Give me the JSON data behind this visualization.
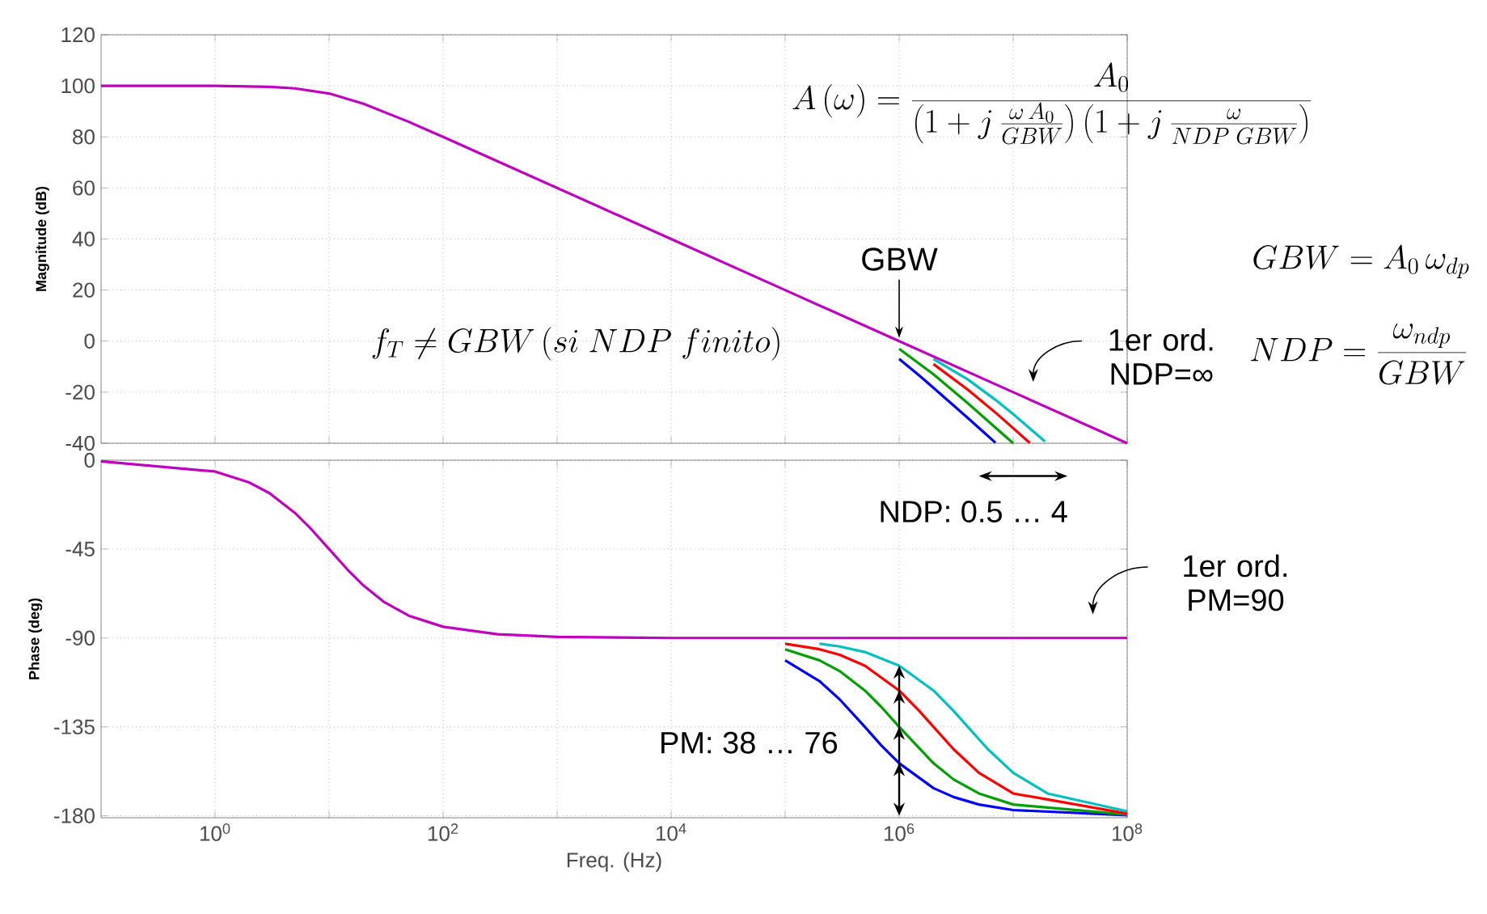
{
  "chart_data": [
    {
      "type": "line",
      "ylabel": "Magnitude (dB)",
      "log": "x",
      "grid": true,
      "tick_labels": "y",
      "xlim": [
        0.1,
        100000000.0
      ],
      "ylim": [
        -40,
        120
      ],
      "xticks": [
        {
          "value": 1,
          "label": null
        },
        {
          "value": 10,
          "label": null
        },
        {
          "value": 100,
          "label": null
        },
        {
          "value": 1000,
          "label": null
        },
        {
          "value": 10000,
          "label": null
        },
        {
          "value": 100000,
          "label": null
        },
        {
          "value": 1000000,
          "label": null
        },
        {
          "value": 10000000,
          "label": null
        },
        {
          "value": 100000000,
          "label": null
        }
      ],
      "yticks": [
        -40,
        -20,
        0,
        20,
        40,
        60,
        80,
        100,
        120
      ],
      "series": [
        {
          "color": "#0000ff",
          "x": [
            1000000,
            1500000,
            2000000,
            3000000,
            4000000,
            5000000,
            7000000
          ],
          "values": [
            -7,
            -13.5,
            -18.3,
            -25.2,
            -30.1,
            -34,
            -39.8
          ]
        },
        {
          "color": "#00a000",
          "x": [
            1000000,
            2000000,
            4000000,
            7000000,
            10000000
          ],
          "values": [
            -3,
            -13,
            -24.3,
            -33.9,
            -40
          ]
        },
        {
          "color": "#ff0000",
          "x": [
            2000000,
            4000000,
            7000000,
            10000000,
            14000000
          ],
          "values": [
            -9,
            -19,
            -28,
            -34.1,
            -39.9
          ]
        },
        {
          "color": "#00c0c0",
          "x": [
            2000000,
            4000000,
            7000000,
            10000000,
            19000000
          ],
          "values": [
            -7,
            -15,
            -23,
            -28.6,
            -39.3
          ]
        },
        {
          "color": "#c000c0",
          "x": [
            0.1,
            1,
            3,
            5,
            10,
            20,
            50,
            100,
            1000,
            10000,
            100000,
            1000000,
            10000000,
            100000000
          ],
          "values": [
            100,
            100,
            99.6,
            99,
            97,
            93,
            85.9,
            80,
            60,
            40,
            20,
            0,
            -20,
            -40
          ]
        }
      ],
      "annotations": [
        "A\\left(\\omega\\right)=\\frac{A_0}{\\left(1+j\\,\\frac{\\omega\\,A_0}{GBW}\\right)\\left(1+j\\,\\frac{\\omega}{NDP\\;GBW}\\right)}",
        {
          "text": "GBW",
          "x": 1000000,
          "y": 0
        },
        "1er ord. NDP=∞",
        "f_T\\neq GBW\\left(si\\ NDP\\ finito\\right)",
        "GBW=A_0\\,\\omega_{dp}",
        "NDP=\\frac{\\omega_{ndp}}{GBW}"
      ]
    },
    {
      "type": "line",
      "xlabel": "Freq. (Hz)",
      "ylabel": "Phase (deg)",
      "log": "x",
      "grid": true,
      "xlim": [
        0.1,
        100000000.0
      ],
      "ylim": [
        -181,
        0
      ],
      "xticks": [
        {
          "value": 1,
          "label": "10$^{0}$"
        },
        {
          "value": 10,
          "label": null
        },
        {
          "value": 100,
          "label": "10$^{2}$"
        },
        {
          "value": 1000,
          "label": null
        },
        {
          "value": 10000,
          "label": "10$^{4}$"
        },
        {
          "value": 100000,
          "label": null
        },
        {
          "value": 1000000,
          "label": "10$^{6}$"
        },
        {
          "value": 10000000,
          "label": null
        },
        {
          "value": 100000000,
          "label": "10$^{8}$"
        }
      ],
      "yticks": [
        -180,
        -135,
        -90,
        -45,
        0
      ],
      "series": [
        {
          "color": "#0000ff",
          "x": [
            100000,
            200000,
            300000,
            500000,
            700000,
            1000000,
            2000000,
            3000000,
            5000000,
            10000000,
            100000000
          ],
          "values": [
            -101.3,
            -111.8,
            -121,
            -135,
            -144.5,
            -153.4,
            -166,
            -170.5,
            -174.3,
            -177.1,
            -179.7
          ]
        },
        {
          "color": "#00a000",
          "x": [
            100000,
            200000,
            300000,
            500000,
            700000,
            1000000,
            2000000,
            3000000,
            5000000,
            10000000,
            100000000
          ],
          "values": [
            -95.7,
            -101.3,
            -106.7,
            -116.6,
            -125,
            -135,
            -153.4,
            -161.6,
            -168.7,
            -174.3,
            -179.4
          ]
        },
        {
          "color": "#ff0000",
          "x": [
            100000,
            200000,
            300000,
            500000,
            1000000,
            1500000,
            2000000,
            3000000,
            5000000,
            10000000,
            100000000
          ],
          "values": [
            -92.9,
            -95.7,
            -98.5,
            -104,
            -116.6,
            -126.9,
            -135,
            -146.3,
            -158.2,
            -168.7,
            -178.9
          ]
        },
        {
          "color": "#00c0c0",
          "x": [
            200000,
            300000,
            500000,
            1000000,
            2000000,
            3000000,
            4000000,
            6000000,
            10000000,
            20000000,
            100000000
          ],
          "values": [
            -92.9,
            -94.3,
            -97.1,
            -104,
            -116.6,
            -126.9,
            -135,
            -146.3,
            -158.2,
            -168.7,
            -177.7
          ]
        },
        {
          "color": "#c000c0",
          "x": [
            0.1,
            1,
            2,
            3,
            5,
            7,
            10,
            15,
            20,
            30,
            50,
            100,
            300,
            1000,
            10000,
            100000,
            1000000,
            10000000,
            100000000
          ],
          "values": [
            -0.6,
            -5.7,
            -11.3,
            -16.7,
            -26.6,
            -35,
            -45,
            -56.3,
            -63.4,
            -71.6,
            -78.7,
            -84.3,
            -88.1,
            -89.4,
            -90,
            -90,
            -90,
            -90,
            -90
          ]
        }
      ],
      "annotations": [
        "NDP: 0.5 … 4",
        "1er ord. PM=90",
        "PM: 38 … 76"
      ]
    }
  ]
}
